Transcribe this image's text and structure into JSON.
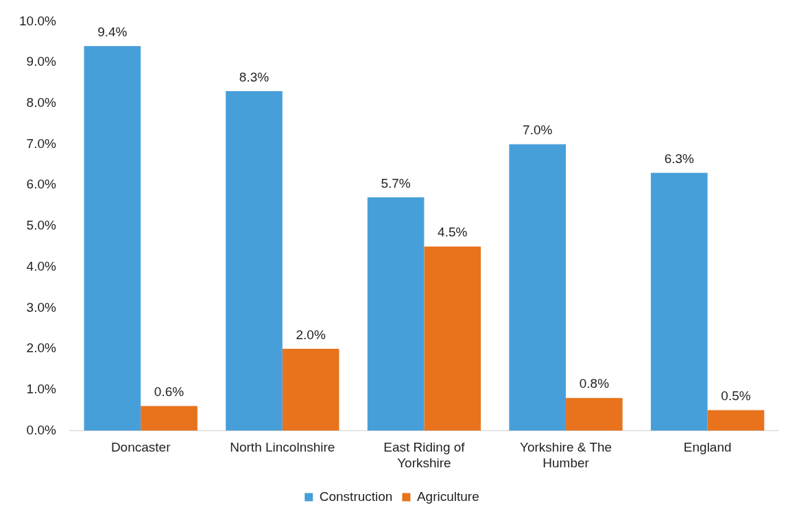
{
  "chart_data": {
    "type": "bar",
    "categories": [
      "Doncaster",
      "North Lincolnshire",
      "East Riding of Yorkshire",
      "Yorkshire & The Humber",
      "England"
    ],
    "series": [
      {
        "name": "Construction",
        "color": "#479fd9",
        "values": [
          9.4,
          8.3,
          5.7,
          7.0,
          6.3
        ],
        "value_labels": [
          "9.4%",
          "8.3%",
          "5.7%",
          "7.0%",
          "6.3%"
        ]
      },
      {
        "name": "Agriculture",
        "color": "#e8731c",
        "values": [
          0.6,
          2.0,
          4.5,
          0.8,
          0.5
        ],
        "value_labels": [
          "0.6%",
          "2.0%",
          "4.5%",
          "0.8%",
          "0.5%"
        ]
      }
    ],
    "ylim": [
      0,
      10
    ],
    "yticks": [
      {
        "value": 0,
        "label": "0.0%"
      },
      {
        "value": 1,
        "label": "1.0%"
      },
      {
        "value": 2,
        "label": "2.0%"
      },
      {
        "value": 3,
        "label": "3.0%"
      },
      {
        "value": 4,
        "label": "4.0%"
      },
      {
        "value": 5,
        "label": "5.0%"
      },
      {
        "value": 6,
        "label": "6.0%"
      },
      {
        "value": 7,
        "label": "7.0%"
      },
      {
        "value": 8,
        "label": "8.0%"
      },
      {
        "value": 9,
        "label": "9.0%"
      },
      {
        "value": 10,
        "label": "10.0%"
      }
    ],
    "grid": false,
    "legend": "bottom"
  }
}
